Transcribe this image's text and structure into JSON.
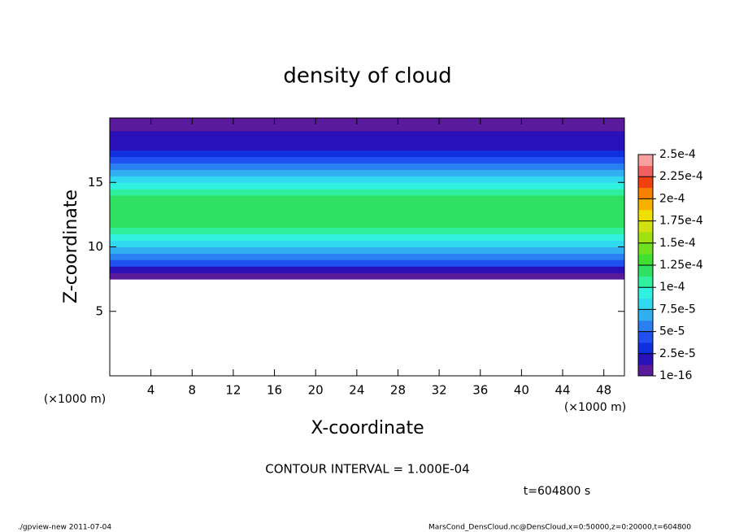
{
  "chart_data": {
    "type": "profile-field",
    "title": "density of cloud",
    "x_label": "X-coordinate",
    "y_label": "Z-coordinate",
    "x_unit": "(×1000 m)",
    "y_unit": "(×1000 m)",
    "xlim": [
      0,
      50
    ],
    "ylim": [
      0,
      20
    ],
    "xticks": [
      4,
      8,
      12,
      16,
      20,
      24,
      28,
      32,
      36,
      40,
      44,
      48
    ],
    "yticks": [
      5,
      10,
      15
    ],
    "profile": {
      "z": [
        7.5,
        8,
        8.5,
        9,
        9.5,
        10,
        10.5,
        11,
        11.5,
        12,
        12.5,
        13,
        13.5,
        14,
        14.5,
        15,
        15.5,
        16,
        16.5,
        17,
        17.5,
        18,
        18.5,
        19,
        19.5
      ],
      "values": [
        5e-06,
        2.5e-05,
        4e-05,
        5.5e-05,
        7e-05,
        8.5e-05,
        0.0001,
        0.00011,
        0.000118,
        0.000122,
        0.000125,
        0.000125,
        0.00012,
        0.000112,
        0.0001,
        8.5e-05,
        7e-05,
        5.5e-05,
        4.2e-05,
        3.2e-05,
        2.5e-05,
        1.8e-05,
        1.3e-05,
        1e-05,
        8e-06
      ]
    },
    "colorbar": {
      "lim": [
        1e-16,
        0.00025
      ],
      "ticks": [
        {
          "value": 1e-16,
          "label": "1e-16"
        },
        {
          "value": 2.5e-05,
          "label": "2.5e-5"
        },
        {
          "value": 5e-05,
          "label": "5e-5"
        },
        {
          "value": 7.5e-05,
          "label": "7.5e-5"
        },
        {
          "value": 0.0001,
          "label": "1e-4"
        },
        {
          "value": 0.000125,
          "label": "1.25e-4"
        },
        {
          "value": 0.00015,
          "label": "1.5e-4"
        },
        {
          "value": 0.000175,
          "label": "1.75e-4"
        },
        {
          "value": 0.0002,
          "label": "2e-4"
        },
        {
          "value": 0.000225,
          "label": "2.25e-4"
        },
        {
          "value": 0.00025,
          "label": "2.5e-4"
        }
      ],
      "colors": [
        "#5a1a9c",
        "#2a10b8",
        "#1030e0",
        "#2050f0",
        "#2a80f0",
        "#30b0f0",
        "#30d8f0",
        "#30f0e0",
        "#30f0a0",
        "#30e060",
        "#40e030",
        "#70e020",
        "#a0e010",
        "#d0e010",
        "#f0e000",
        "#f8b000",
        "#f88000",
        "#f04010",
        "#f06060",
        "#f8a0a0"
      ]
    },
    "annotation": "CONTOUR INTERVAL = 1.000E-04",
    "time_label": "t=604800 s",
    "footer_left": "./gpview-new   2011-07-04",
    "footer_right": "MarsCond_DensCloud.nc@DensCloud,x=0:50000,z=0:20000,t=604800"
  }
}
